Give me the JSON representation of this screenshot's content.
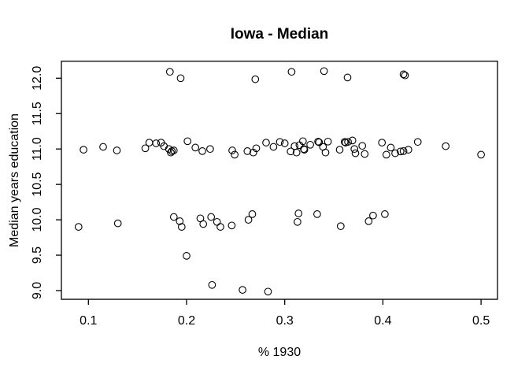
{
  "chart": {
    "title": "Iowa - Median",
    "xlabel": "% 1930",
    "ylabel": "Median years education"
  },
  "axes": {
    "x_tick_labels": [
      "0.1",
      "0.2",
      "0.3",
      "0.4",
      "0.5"
    ],
    "y_tick_labels": [
      "9.0",
      "9.5",
      "10.0",
      "10.5",
      "11.0",
      "11.5",
      "12.0"
    ]
  },
  "colors": {
    "foreground": "#000000",
    "background": "#ffffff"
  },
  "chart_data": {
    "type": "scatter",
    "title": "Iowa - Median",
    "xlabel": "% 1930",
    "ylabel": "Median years education",
    "marker": "open-circle",
    "grid": false,
    "legend": null,
    "xlim": [
      0.0725,
      0.5167
    ],
    "ylim": [
      8.877,
      12.24
    ],
    "x_ticks": [
      0.1,
      0.2,
      0.3,
      0.4,
      0.5
    ],
    "y_ticks": [
      9.0,
      9.5,
      10.0,
      10.5,
      11.0,
      11.5,
      12.0
    ],
    "points": [
      [
        0.183,
        12.09
      ],
      [
        0.194,
        12.0
      ],
      [
        0.27,
        11.985
      ],
      [
        0.307,
        12.09
      ],
      [
        0.34,
        12.1
      ],
      [
        0.364,
        12.01
      ],
      [
        0.421,
        12.055
      ],
      [
        0.4225,
        12.04
      ],
      [
        0.095,
        10.99
      ],
      [
        0.115,
        11.03
      ],
      [
        0.129,
        10.98
      ],
      [
        0.158,
        11.01
      ],
      [
        0.162,
        11.09
      ],
      [
        0.169,
        11.08
      ],
      [
        0.174,
        11.09
      ],
      [
        0.177,
        11.04
      ],
      [
        0.182,
        11.0
      ],
      [
        0.184,
        10.95
      ],
      [
        0.187,
        10.98
      ],
      [
        0.185,
        10.97
      ],
      [
        0.201,
        11.11
      ],
      [
        0.209,
        11.02
      ],
      [
        0.216,
        10.97
      ],
      [
        0.224,
        11.0
      ],
      [
        0.2465,
        10.98
      ],
      [
        0.249,
        10.92
      ],
      [
        0.262,
        10.97
      ],
      [
        0.268,
        10.95
      ],
      [
        0.271,
        11.01
      ],
      [
        0.281,
        11.09
      ],
      [
        0.2885,
        11.03
      ],
      [
        0.295,
        11.1
      ],
      [
        0.3,
        11.08
      ],
      [
        0.306,
        10.965
      ],
      [
        0.31,
        11.04
      ],
      [
        0.312,
        10.95
      ],
      [
        0.315,
        11.055
      ],
      [
        0.3185,
        11.11
      ],
      [
        0.3195,
        11.0
      ],
      [
        0.32,
        10.99
      ],
      [
        0.326,
        11.06
      ],
      [
        0.334,
        11.105
      ],
      [
        0.335,
        11.095
      ],
      [
        0.339,
        11.03
      ],
      [
        0.3415,
        10.95
      ],
      [
        0.344,
        11.105
      ],
      [
        0.356,
        10.99
      ],
      [
        0.361,
        11.1
      ],
      [
        0.362,
        11.09
      ],
      [
        0.3645,
        11.1
      ],
      [
        0.369,
        11.12
      ],
      [
        0.371,
        11.0
      ],
      [
        0.372,
        10.94
      ],
      [
        0.379,
        11.045
      ],
      [
        0.3815,
        10.93
      ],
      [
        0.399,
        11.09
      ],
      [
        0.4035,
        10.92
      ],
      [
        0.408,
        11.02
      ],
      [
        0.4125,
        10.94
      ],
      [
        0.418,
        10.965
      ],
      [
        0.421,
        10.97
      ],
      [
        0.426,
        10.99
      ],
      [
        0.4355,
        11.1
      ],
      [
        0.464,
        11.04
      ],
      [
        0.5,
        10.92
      ],
      [
        0.09,
        9.9
      ],
      [
        0.13,
        9.95
      ],
      [
        0.187,
        10.04
      ],
      [
        0.193,
        9.98
      ],
      [
        0.195,
        9.9
      ],
      [
        0.214,
        10.02
      ],
      [
        0.217,
        9.94
      ],
      [
        0.225,
        10.04
      ],
      [
        0.231,
        9.97
      ],
      [
        0.2345,
        9.9
      ],
      [
        0.246,
        9.92
      ],
      [
        0.263,
        10.0
      ],
      [
        0.267,
        10.08
      ],
      [
        0.314,
        10.09
      ],
      [
        0.313,
        9.97
      ],
      [
        0.333,
        10.08
      ],
      [
        0.357,
        9.91
      ],
      [
        0.3855,
        9.98
      ],
      [
        0.39,
        10.06
      ],
      [
        0.402,
        10.08
      ],
      [
        0.2,
        9.49
      ],
      [
        0.226,
        9.08
      ],
      [
        0.257,
        9.01
      ],
      [
        0.283,
        8.985
      ]
    ]
  }
}
